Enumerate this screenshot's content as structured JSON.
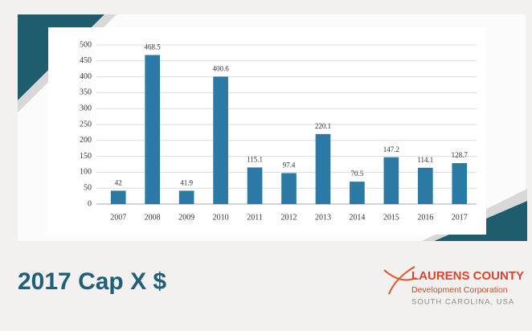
{
  "chart_data": {
    "type": "bar",
    "title": "2017 Cap X $",
    "categories": [
      "2007",
      "2008",
      "2009",
      "2010",
      "2011",
      "2012",
      "2013",
      "2014",
      "2015",
      "2016",
      "2017"
    ],
    "values": [
      42,
      468.5,
      41.9,
      400.6,
      115.1,
      97.4,
      220.1,
      70.5,
      147.2,
      114.1,
      128.7
    ],
    "color": "#2b7aa6",
    "ylim": [
      0,
      500
    ],
    "yticks": [
      0,
      50,
      100,
      150,
      200,
      250,
      300,
      350,
      400,
      450,
      500
    ],
    "grid": true
  },
  "logo": {
    "name": "LAURENS COUNTY",
    "subtitle": "Development Corporation",
    "location": "SOUTH CAROLINA, USA"
  }
}
